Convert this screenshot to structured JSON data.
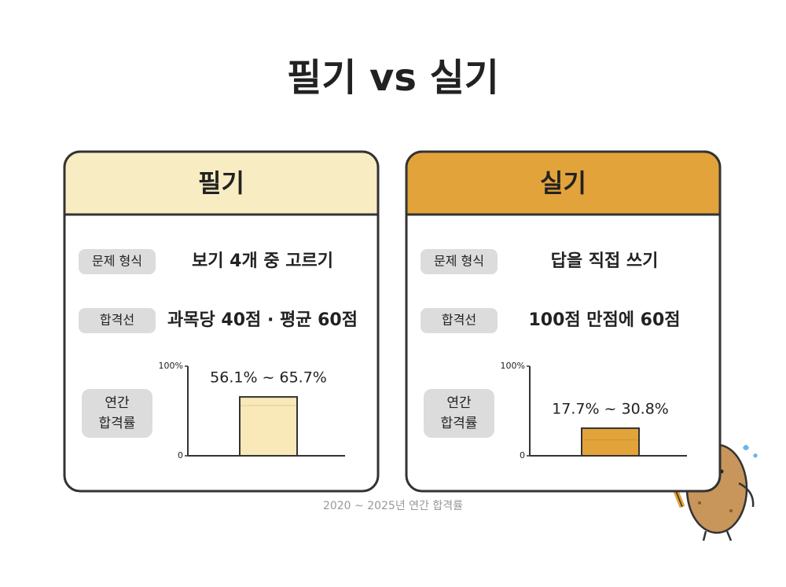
{
  "title": "필기 vs 실기",
  "cards": [
    {
      "header": "필기",
      "rows": [
        {
          "label": "문제 형식",
          "value": "보기 4개 중 고르기"
        },
        {
          "label": "합격선",
          "value": "과목당 40점 · 평균 60점"
        }
      ],
      "rate_label": [
        "연간",
        "합격률"
      ],
      "chart": {
        "type": "bar",
        "range": [
          56.1,
          65.7
        ],
        "range_label": "56.1% ~ 65.7%",
        "color": "#f9e8b8",
        "ylim": [
          0,
          100
        ],
        "yticks": [
          0,
          {
            "value": 100,
            "label": "100%"
          }
        ]
      }
    },
    {
      "header": "실기",
      "rows": [
        {
          "label": "문제 형식",
          "value": "답을 직접 쓰기"
        },
        {
          "label": "합격선",
          "value": "100점 만점에 60점"
        }
      ],
      "rate_label": [
        "연간",
        "합격률"
      ],
      "chart": {
        "type": "bar",
        "range": [
          17.7,
          30.8
        ],
        "range_label": "17.7% ~ 30.8%",
        "color": "#e2a33a",
        "ylim": [
          0,
          100
        ],
        "yticks": [
          0,
          {
            "value": 100,
            "label": "100%"
          }
        ]
      }
    }
  ],
  "footnote": "2020 ~ 2025년 연간 합격률"
}
